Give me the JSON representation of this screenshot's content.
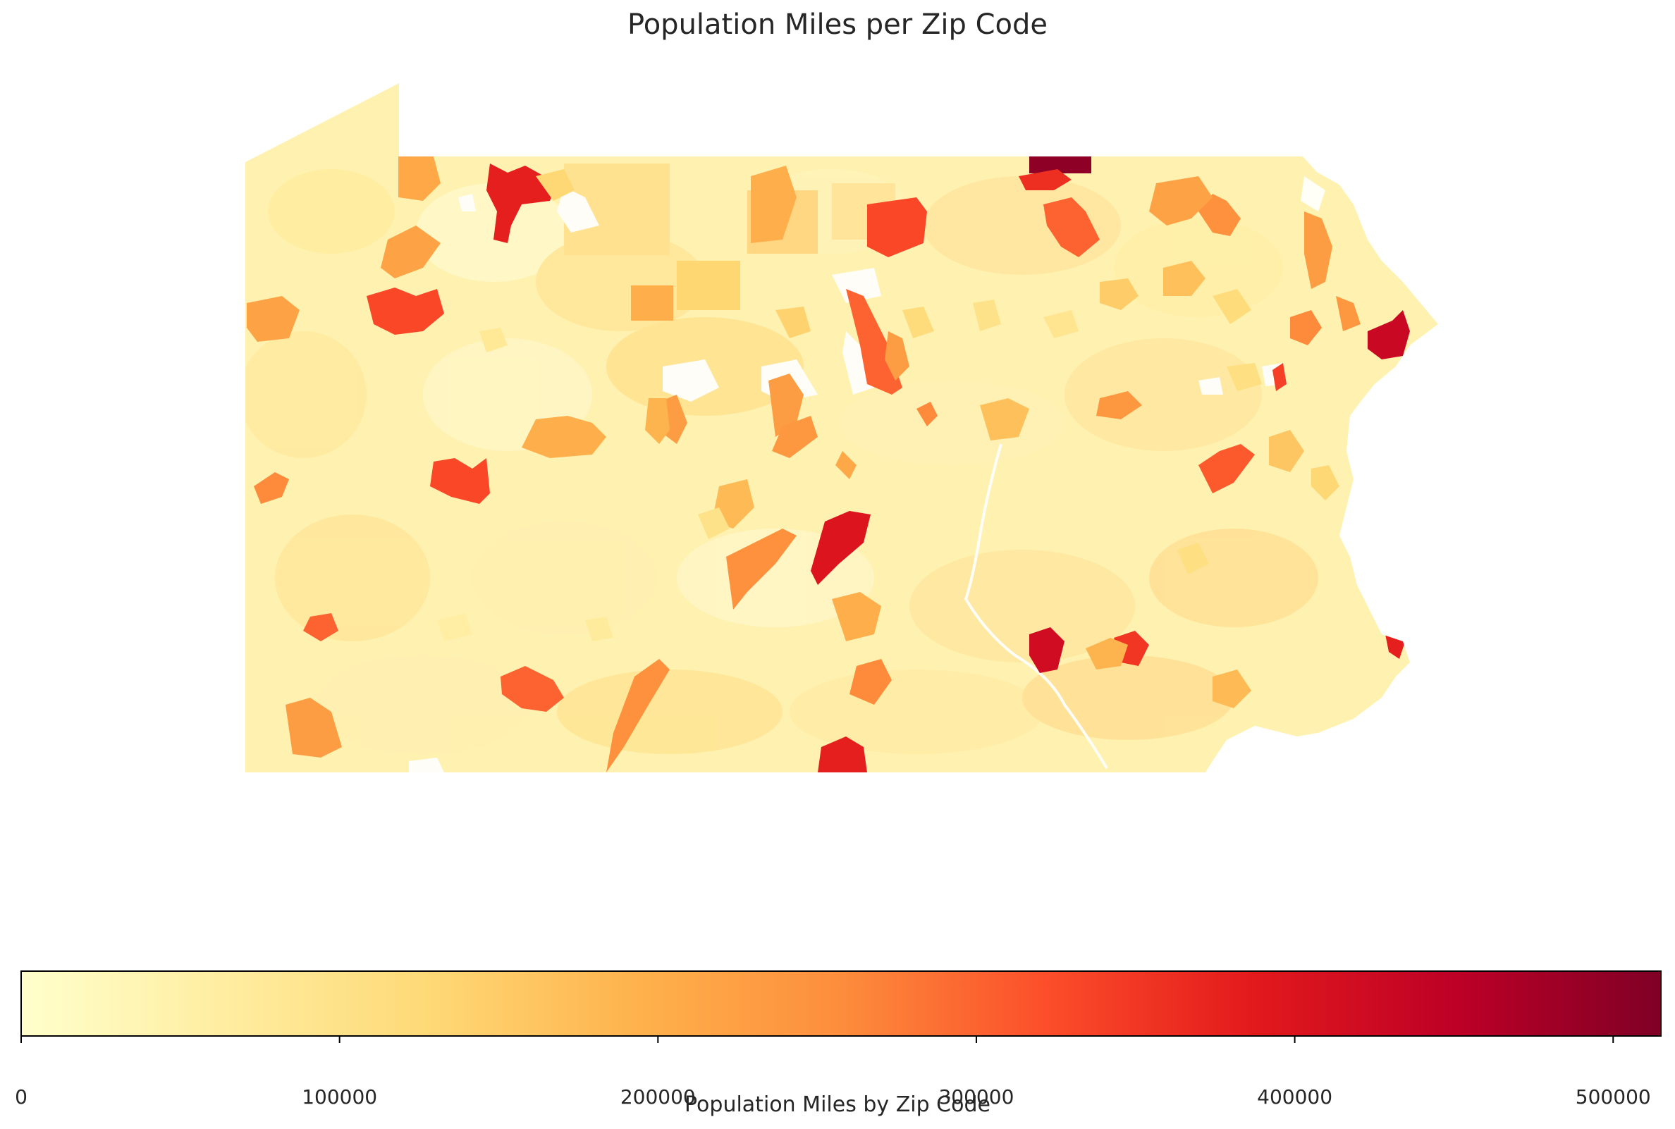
{
  "chart_data": {
    "type": "heatmap",
    "title": "Population Miles per Zip Code",
    "colorbar": {
      "label": "Population Miles by Zip Code",
      "ticks": [
        0,
        100000,
        200000,
        300000,
        400000,
        500000
      ],
      "tick_labels": [
        "0",
        "100000",
        "200000",
        "300000",
        "400000",
        "500000"
      ],
      "range": [
        0,
        515000
      ],
      "colormap": "YlOrRd",
      "orientation": "horizontal",
      "placement": "bottom"
    },
    "region": "Pennsylvania",
    "highlighted_zones": [
      {
        "value": 500000
      },
      {
        "value": 430000
      },
      {
        "value": 380000
      },
      {
        "value": 380000
      },
      {
        "value": 330000
      },
      {
        "value": 300000
      },
      {
        "value": 330000
      },
      {
        "value": 300000
      },
      {
        "value": 400000
      },
      {
        "value": 420000
      },
      {
        "value": 300000
      },
      {
        "value": 330000
      },
      {
        "value": 350000
      },
      {
        "value": 310000
      },
      {
        "value": 230000
      },
      {
        "value": 230000
      },
      {
        "value": 250000
      },
      {
        "value": 250000
      },
      {
        "value": 380000
      },
      {
        "value": 300000
      },
      {
        "value": 260000
      },
      {
        "value": 360000
      },
      {
        "value": 260000
      },
      {
        "value": 240000
      },
      {
        "value": 340000
      },
      {
        "value": 260000
      },
      {
        "value": 260000
      },
      {
        "value": 230000
      },
      {
        "value": 240000
      },
      {
        "value": 250000
      },
      {
        "value": 230000
      },
      {
        "value": 220000
      },
      {
        "value": 200000
      },
      {
        "value": 200000
      },
      {
        "value": 210000
      },
      {
        "value": 220000
      },
      {
        "value": 220000
      },
      {
        "value": 240000
      },
      {
        "value": 210000
      },
      {
        "value": 200000
      },
      {
        "value": 230000
      },
      {
        "value": 190000
      },
      {
        "value": 180000
      },
      {
        "value": 200000
      },
      {
        "value": 190000
      },
      {
        "value": 180000
      },
      {
        "value": 170000
      },
      {
        "value": 160000
      },
      {
        "value": 170000
      },
      {
        "value": 120000
      },
      {
        "value": 130000
      },
      {
        "value": 150000
      },
      {
        "value": 140000
      },
      {
        "value": 110000
      },
      {
        "value": 120000
      },
      {
        "value": 100000
      },
      {
        "value": 90000
      },
      {
        "value": 80000
      },
      {
        "value": 60000
      },
      {
        "value": 70000
      },
      {
        "value": 110000
      },
      {
        "value": 130000
      },
      {
        "value": 100000
      }
    ]
  }
}
